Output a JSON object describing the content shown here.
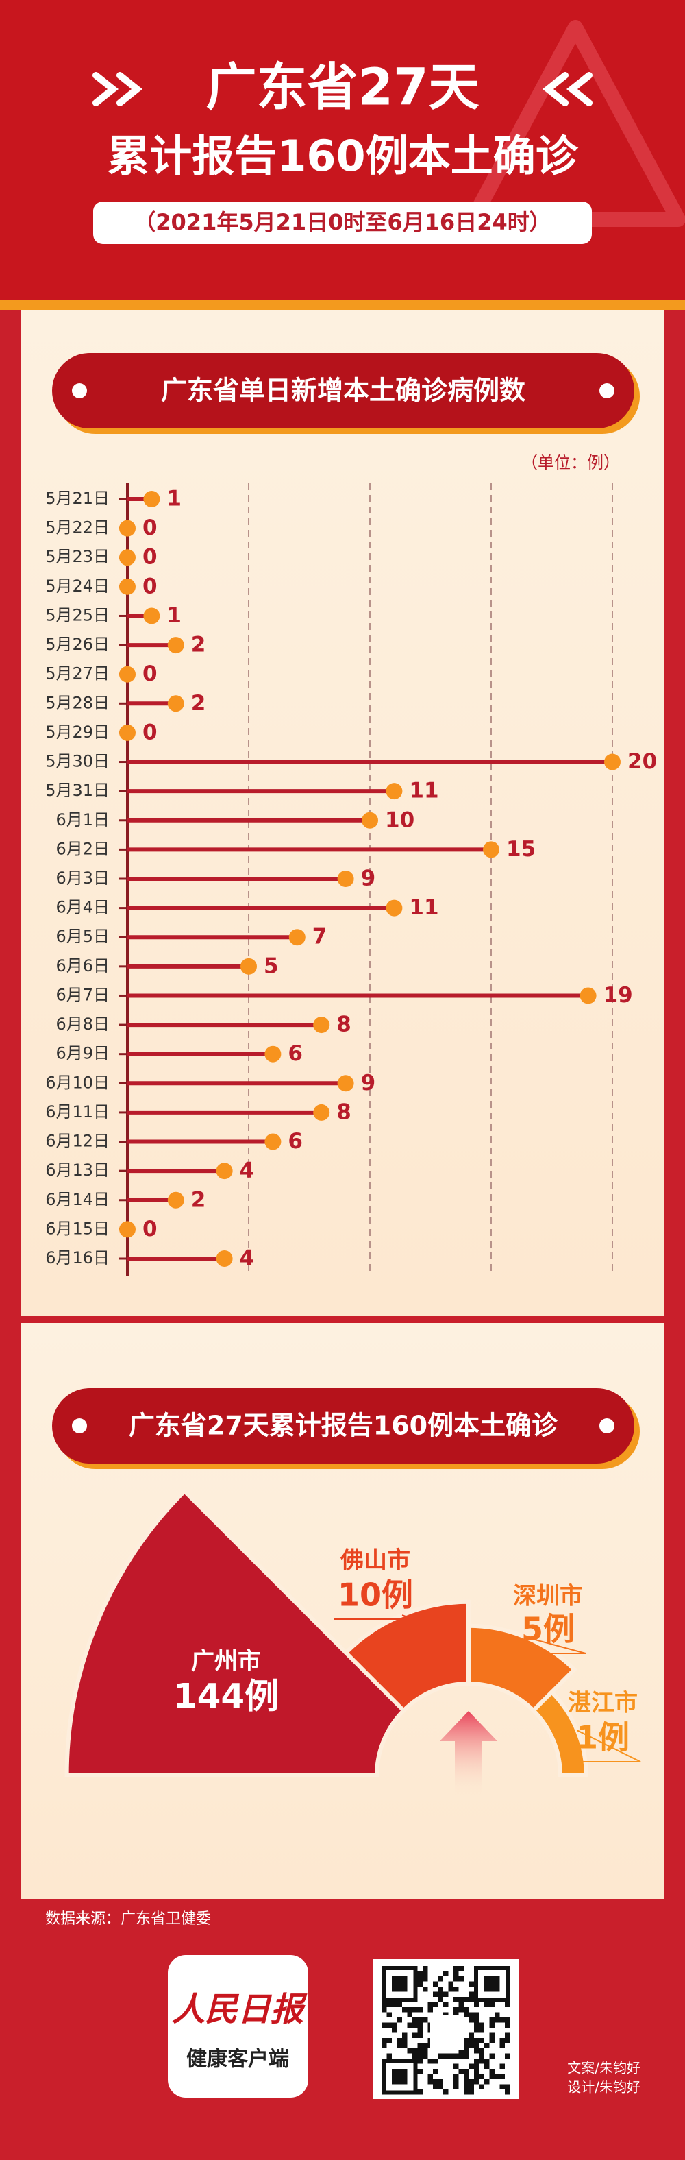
{
  "header": {
    "title_line1": "广东省27天",
    "title_line2": "累计报告160例本土确诊",
    "date_range": "（2021年5月21日0时至6月16日24时）"
  },
  "chart_data": [
    {
      "type": "lollipop",
      "title": "广东省单日新增本土确诊病例数",
      "unit_label": "（单位：例）",
      "categories": [
        "5月21日",
        "5月22日",
        "5月23日",
        "5月24日",
        "5月25日",
        "5月26日",
        "5月27日",
        "5月28日",
        "5月29日",
        "5月30日",
        "5月31日",
        "6月1日",
        "6月2日",
        "6月3日",
        "6月4日",
        "6月5日",
        "6月6日",
        "6月7日",
        "6月8日",
        "6月9日",
        "6月10日",
        "6月11日",
        "6月12日",
        "6月13日",
        "6月14日",
        "6月15日",
        "6月16日"
      ],
      "values": [
        1,
        0,
        0,
        0,
        1,
        2,
        0,
        2,
        0,
        20,
        11,
        10,
        15,
        9,
        11,
        7,
        5,
        19,
        8,
        6,
        9,
        8,
        6,
        4,
        2,
        0,
        4
      ],
      "xlim": [
        0,
        20
      ],
      "xticks": [
        5,
        10,
        15,
        20
      ],
      "grid": true,
      "color": "#b81c2b",
      "dot_color": "#f7931e"
    },
    {
      "type": "rose",
      "title": "广东省27天累计报告160例本土确诊",
      "categories": [
        "广州市",
        "佛山市",
        "深圳市",
        "湛江市"
      ],
      "values": [
        144,
        10,
        5,
        1
      ],
      "value_labels": [
        "144例",
        "10例",
        "5例",
        "1例"
      ],
      "colors": [
        "#c0182a",
        "#e8441f",
        "#f4731c",
        "#f7931e"
      ]
    }
  ],
  "footer": {
    "source": "数据来源：广东省卫健委",
    "logo_name": "人民日报",
    "logo_sub": "健康客户端",
    "copywriter": "文案/朱钧好",
    "designer": "设计/朱钧好"
  }
}
